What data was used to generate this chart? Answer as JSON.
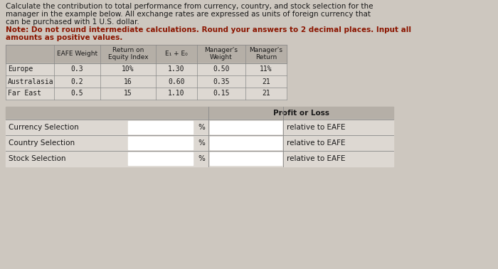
{
  "title_lines": [
    "Calculate the contribution to total performance from currency, country, and stock selection for the",
    "manager in the example below. All exchange rates are expressed as units of foreign currency that",
    "can be purchased with 1 U.S. dollar."
  ],
  "note_lines": [
    "Note: Do not round intermediate calculations. Round your answers to 2 decimal places. Input all",
    "amounts as positive values."
  ],
  "bg_color": "#cdc7bf",
  "table1_header_bg": "#b5afa7",
  "table1_row_bg": "#ddd8d2",
  "table2_header_bg": "#b5afa7",
  "table2_row_bg": "#ddd8d2",
  "input_bg": "#ffffff",
  "border_color": "#3a6bbf",
  "font_color": "#1a1a1a",
  "note_color": "#8B1500",
  "table1_header": [
    "",
    "EAFE Weight",
    "Return on\nEquity Index",
    "E₁ + E₀",
    "Manager’s\nWeight",
    "Manager’s\nReturn"
  ],
  "table1_rows": [
    [
      "Europe",
      "0.3",
      "10%",
      "1.30",
      "0.50",
      "11%"
    ],
    [
      "Australasia",
      "0.2",
      "16",
      "0.60",
      "0.35",
      "21"
    ],
    [
      "Far East",
      "0.5",
      "15",
      "1.10",
      "0.15",
      "21"
    ]
  ],
  "table2_rows": [
    "Currency Selection",
    "Country Selection",
    "Stock Selection"
  ],
  "profit_or_loss": "Profit or Loss",
  "percent_sign": "%",
  "relative_text": "relative to EAFE"
}
